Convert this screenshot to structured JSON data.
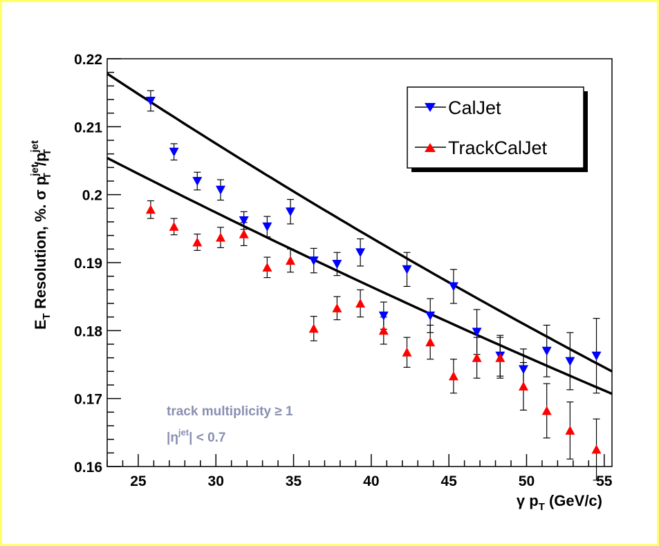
{
  "colors": {
    "frame": "#ffff66",
    "caljet": "#0000ff",
    "trackcaljet": "#ff0000",
    "annotation": "#8a8fb0",
    "fit": "#000000"
  },
  "chart_data": {
    "type": "scatter",
    "xlabel": {
      "prefix": "γ p",
      "sub": "T",
      "suffix": " (GeV/c)"
    },
    "ylabel": {
      "p1": "E",
      "s1": "T",
      "p2": " Resolution, %.  σ p",
      "sup2": "jet",
      "sub2": "T",
      "p3": "/p",
      "sup3": "jet",
      "sub3": "T"
    },
    "xlim": [
      23,
      55.5
    ],
    "ylim": [
      0.16,
      0.22
    ],
    "x_ticks": [
      25,
      30,
      35,
      40,
      45,
      50,
      55
    ],
    "x_tick_labels": [
      "25",
      "30",
      "35",
      "40",
      "45",
      "50",
      "55"
    ],
    "y_ticks": [
      0.16,
      0.17,
      0.18,
      0.19,
      0.2,
      0.21,
      0.22
    ],
    "y_tick_labels": [
      "0.16",
      "0.17",
      "0.18",
      "0.19",
      "0.2",
      "0.21",
      "0.22"
    ],
    "legend_position": "top-right",
    "series": [
      {
        "name": "CalJet",
        "marker": "triangle-down",
        "color": "#0000ff",
        "x": [
          25.8,
          27.3,
          28.8,
          30.3,
          31.8,
          33.3,
          34.8,
          36.3,
          37.8,
          39.3,
          40.8,
          42.3,
          43.8,
          45.3,
          46.8,
          48.3,
          49.8,
          51.3,
          52.8,
          54.5
        ],
        "y": [
          0.2138,
          0.2063,
          0.202,
          0.2007,
          0.1962,
          0.1953,
          0.1975,
          0.1903,
          0.1898,
          0.1915,
          0.1822,
          0.189,
          0.1822,
          0.1865,
          0.1798,
          0.1763,
          0.1743,
          0.177,
          0.1755,
          0.1763
        ],
        "err": [
          0.0015,
          0.0012,
          0.0013,
          0.0015,
          0.0013,
          0.0015,
          0.0018,
          0.0018,
          0.0017,
          0.002,
          0.002,
          0.0025,
          0.0025,
          0.0025,
          0.0033,
          0.003,
          0.003,
          0.0038,
          0.0042,
          0.0055
        ],
        "fit": [
          0.2178,
          0.174
        ]
      },
      {
        "name": "TrackCalJet",
        "marker": "triangle-up",
        "color": "#ff0000",
        "x": [
          25.8,
          27.3,
          28.8,
          30.3,
          31.8,
          33.3,
          34.8,
          36.3,
          37.8,
          39.3,
          40.8,
          42.3,
          43.8,
          45.3,
          46.8,
          48.3,
          49.8,
          51.3,
          52.8,
          54.5
        ],
        "y": [
          0.1978,
          0.1953,
          0.193,
          0.1937,
          0.1942,
          0.1893,
          0.1903,
          0.1803,
          0.1833,
          0.184,
          0.18,
          0.1768,
          0.1783,
          0.1733,
          0.176,
          0.176,
          0.1718,
          0.1682,
          0.1653,
          0.1625
        ],
        "err": [
          0.0013,
          0.0012,
          0.0012,
          0.0015,
          0.0017,
          0.0015,
          0.0017,
          0.0018,
          0.0017,
          0.002,
          0.002,
          0.0022,
          0.0025,
          0.0025,
          0.003,
          0.003,
          0.0035,
          0.004,
          0.0042,
          0.0045
        ],
        "fit": [
          0.2054,
          0.1707
        ]
      }
    ],
    "annotations": {
      "line1": "track multiplicity ≥ 1",
      "line2_base": "|η",
      "line2_sup": "jet",
      "line2_end": "| < 0.7"
    }
  }
}
